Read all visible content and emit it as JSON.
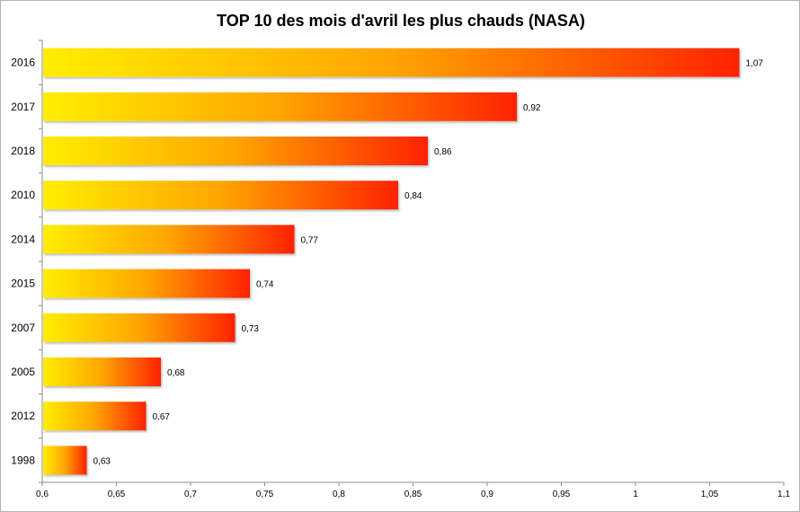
{
  "chart_data": {
    "type": "bar",
    "orientation": "horizontal",
    "title": "TOP 10 des mois d'avril les plus chauds (NASA)",
    "xlabel": "",
    "ylabel": "",
    "categories": [
      "2016",
      "2017",
      "2018",
      "2010",
      "2014",
      "2015",
      "2007",
      "2005",
      "2012",
      "1998"
    ],
    "values": [
      1.07,
      0.92,
      0.86,
      0.84,
      0.77,
      0.74,
      0.73,
      0.68,
      0.67,
      0.63
    ],
    "value_labels": [
      "1,07",
      "0,92",
      "0,86",
      "0,84",
      "0,77",
      "0,74",
      "0,73",
      "0,68",
      "0,67",
      "0,63"
    ],
    "xlim": [
      0.6,
      1.1
    ],
    "x_ticks": [
      0.6,
      0.65,
      0.7,
      0.75,
      0.8,
      0.85,
      0.9,
      0.95,
      1.0,
      1.05,
      1.1
    ],
    "x_tick_labels": [
      "0,6",
      "0,65",
      "0,7",
      "0,75",
      "0,8",
      "0,85",
      "0,9",
      "0,95",
      "1",
      "1,05",
      "1,1"
    ],
    "grid": false,
    "legend": "none",
    "colors": {
      "gradient_start": "#ffee00",
      "gradient_mid": "#ffa500",
      "gradient_end": "#ff2200",
      "axis": "#8c8c8c",
      "text": "#000000"
    }
  }
}
